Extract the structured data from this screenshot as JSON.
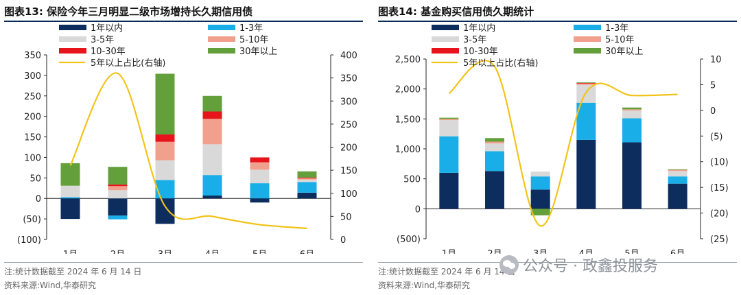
{
  "left": {
    "title": "图表13:  保险今年三月明显二级市场增持长久期信用债",
    "note": "注:统计数据截至 2024 年 6 月 14 日",
    "source": "资料来源:Wind,华泰研究",
    "yunit_left": "(亿元)",
    "yunit_right": "(%)"
  },
  "right": {
    "title": "图表14:  基金购买信用债久期统计",
    "note": "注:统计数据截至 2024 年 6 月 14 日",
    "source": "资料来源:Wind,华泰研究",
    "yunit_left": "(亿元)",
    "yunit_right": "(%)"
  },
  "watermark": {
    "text": "公众号 · 政鑫投服务",
    "icon": "wechat-icon"
  },
  "colors": {
    "1年以内": "#0d2d5e",
    "1-3年": "#1aaee8",
    "3-5年": "#d9d9d9",
    "5-10年": "#f2a08e",
    "10-30年": "#e8141b",
    "30年以上": "#63a03b",
    "line": "#f3c318"
  },
  "chart_data": [
    {
      "type": "bar",
      "stacked": true,
      "categories": [
        "1月",
        "2月",
        "3月",
        "4月",
        "5月",
        "6月"
      ],
      "series": [
        {
          "name": "1年以内",
          "values": [
            -50,
            -42,
            -62,
            7,
            -10,
            14
          ]
        },
        {
          "name": "1-3年",
          "values": [
            3,
            -9,
            45,
            50,
            37,
            26
          ]
        },
        {
          "name": "3-5年",
          "values": [
            28,
            20,
            48,
            75,
            33,
            6
          ]
        },
        {
          "name": "5-10年",
          "values": [
            0,
            10,
            45,
            62,
            18,
            3
          ]
        },
        {
          "name": "10-30年",
          "values": [
            0,
            4,
            18,
            18,
            12,
            2
          ]
        },
        {
          "name": "30年以上",
          "values": [
            55,
            43,
            148,
            38,
            0,
            15
          ]
        }
      ],
      "line": {
        "name": "5年以上占比(右轴)",
        "values": [
          160,
          360,
          72,
          50,
          32,
          24
        ]
      },
      "ylim_left": [
        -100,
        350
      ],
      "yticks_left": [
        "(100)",
        "(50)",
        "0",
        "50",
        "100",
        "150",
        "200",
        "250",
        "300",
        "350"
      ],
      "ylim_right": [
        0,
        400
      ],
      "yticks_right": [
        "0",
        "50",
        "100",
        "150",
        "200",
        "250",
        "300",
        "350",
        "400"
      ],
      "legend_position": "top"
    },
    {
      "type": "bar",
      "stacked": true,
      "categories": [
        "1月",
        "2月",
        "3月",
        "4月",
        "5月",
        "6月"
      ],
      "series": [
        {
          "name": "1年以内",
          "values": [
            600,
            630,
            320,
            1150,
            1110,
            420
          ]
        },
        {
          "name": "1-3年",
          "values": [
            610,
            330,
            220,
            620,
            400,
            120
          ]
        },
        {
          "name": "3-5年",
          "values": [
            270,
            130,
            80,
            300,
            130,
            90
          ]
        },
        {
          "name": "5-10年",
          "values": [
            20,
            30,
            0,
            20,
            20,
            20
          ]
        },
        {
          "name": "10-30年",
          "values": [
            0,
            0,
            0,
            10,
            0,
            0
          ]
        },
        {
          "name": "30年以上",
          "values": [
            20,
            60,
            -110,
            10,
            30,
            10
          ]
        }
      ],
      "line": {
        "name": "5年以上占比(右轴)",
        "values": [
          3.3,
          8.5,
          -22.5,
          3.5,
          2.9,
          3.1
        ]
      },
      "ylim_left": [
        -500,
        2500
      ],
      "yticks_left": [
        "(500)",
        "0",
        "500",
        "1,000",
        "1,500",
        "2,000",
        "2,500"
      ],
      "ylim_right": [
        -25,
        10
      ],
      "yticks_right": [
        "(25)",
        "(20)",
        "(15)",
        "(10)",
        "(5)",
        "0",
        "5",
        "10"
      ],
      "legend_position": "top"
    }
  ]
}
